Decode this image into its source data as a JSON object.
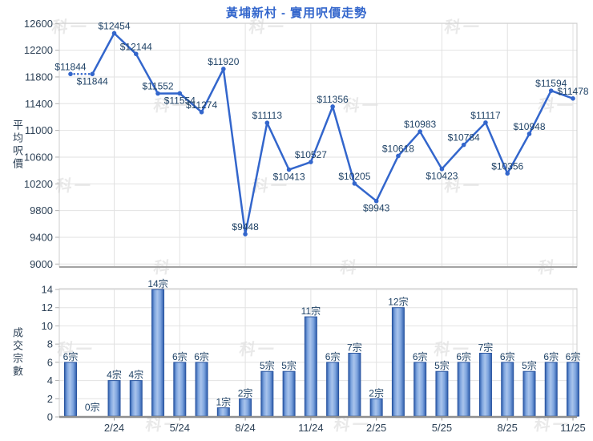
{
  "title": "黃埔新村 - 實用呎價走勢",
  "watermark_text": "科一",
  "accent_color": "#3366cc",
  "chart_data": [
    {
      "type": "line",
      "title": "黃埔新村 - 實用呎價走勢",
      "ylabel": "平均呎價",
      "ylim": [
        9000,
        12600
      ],
      "yticks": [
        9000,
        9400,
        9800,
        10200,
        10600,
        11000,
        11400,
        11800,
        12200,
        12600
      ],
      "grid": true,
      "x_slot_count": 24,
      "x_tick_labels": [
        "2/24",
        "5/24",
        "8/24",
        "11/24",
        "2/25",
        "5/25",
        "8/25",
        "11/25"
      ],
      "x_tick_slots": [
        2,
        5,
        8,
        11,
        14,
        17,
        20,
        23
      ],
      "values": [
        11844,
        11844,
        12454,
        12144,
        11552,
        11554,
        11274,
        11920,
        9448,
        11113,
        10413,
        10527,
        11356,
        10205,
        9943,
        10618,
        10983,
        10423,
        10784,
        11117,
        10356,
        10948,
        11594,
        11478
      ],
      "point_labels": [
        "$11844",
        "$11844",
        "$12454",
        "$12144",
        "$11552",
        "$11554",
        "$11274",
        "$11920",
        "$9448",
        "$11113",
        "$10413",
        "$10527",
        "$11356",
        "$10205",
        "$9943",
        "$10618",
        "$10983",
        "$10423",
        "$10784",
        "$11117",
        "$10356",
        "$10948",
        "$11594",
        "$11478"
      ],
      "dotted_segment_points": [
        0,
        1
      ],
      "line_color": "#3366cc"
    },
    {
      "type": "bar",
      "ylabel": "成交宗數",
      "ylim": [
        0,
        14
      ],
      "yticks": [
        0,
        2,
        4,
        6,
        8,
        10,
        12,
        14
      ],
      "grid": true,
      "x_slot_count": 24,
      "x_tick_labels": [
        "2/24",
        "5/24",
        "8/24",
        "11/24",
        "2/25",
        "5/25",
        "8/25",
        "11/25"
      ],
      "x_tick_slots": [
        2,
        5,
        8,
        11,
        14,
        17,
        20,
        23
      ],
      "values": [
        6,
        0,
        4,
        4,
        14,
        6,
        6,
        1,
        2,
        5,
        5,
        11,
        6,
        7,
        2,
        12,
        6,
        5,
        6,
        7,
        6,
        5,
        6,
        6
      ],
      "bar_labels": [
        "6宗",
        "0宗",
        "4宗",
        "4宗",
        "14宗",
        "6宗",
        "6宗",
        "1宗",
        "2宗",
        "5宗",
        "5宗",
        "11宗",
        "6宗",
        "7宗",
        "2宗",
        "12宗",
        "6宗",
        "5宗",
        "6宗",
        "7宗",
        "6宗",
        "5宗",
        "6宗",
        "6宗"
      ],
      "bar_colors": {
        "edge": "#2d5cab",
        "mid": "#7da4de",
        "highlight": "#a9c4ec",
        "outline": "#2a55a0"
      }
    }
  ]
}
